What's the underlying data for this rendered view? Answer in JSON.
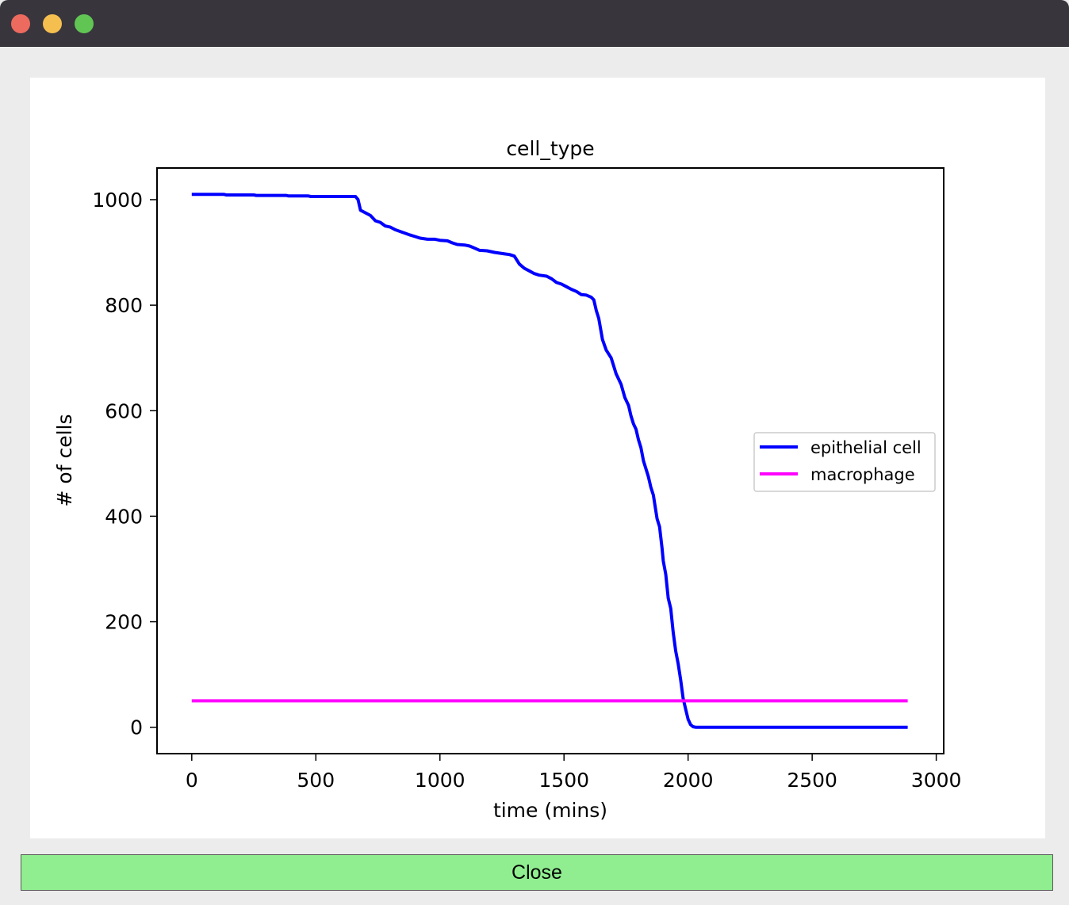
{
  "window": {
    "controls": [
      "close",
      "minimize",
      "zoom"
    ]
  },
  "close_button": {
    "label": "Close",
    "color": "#90ee90"
  },
  "chart_data": {
    "type": "line",
    "title": "cell_type",
    "xlabel": "time (mins)",
    "ylabel": "# of cells",
    "xlim": [
      -140,
      3030
    ],
    "ylim": [
      -50,
      1060
    ],
    "xticks": [
      0,
      500,
      1000,
      1500,
      2000,
      2500,
      3000
    ],
    "yticks": [
      0,
      200,
      400,
      600,
      800,
      1000
    ],
    "grid": false,
    "legend": "center-right",
    "series": [
      {
        "name": "epithelial cell",
        "color": "#0000ff",
        "points": [
          [
            0,
            1010
          ],
          [
            130,
            1010
          ],
          [
            140,
            1009
          ],
          [
            250,
            1009
          ],
          [
            260,
            1008
          ],
          [
            380,
            1008
          ],
          [
            390,
            1007
          ],
          [
            470,
            1007
          ],
          [
            480,
            1006
          ],
          [
            660,
            1006
          ],
          [
            670,
            1000
          ],
          [
            680,
            980
          ],
          [
            700,
            975
          ],
          [
            720,
            970
          ],
          [
            740,
            960
          ],
          [
            760,
            957
          ],
          [
            780,
            950
          ],
          [
            800,
            948
          ],
          [
            820,
            943
          ],
          [
            850,
            938
          ],
          [
            880,
            933
          ],
          [
            900,
            930
          ],
          [
            920,
            927
          ],
          [
            950,
            925
          ],
          [
            980,
            925
          ],
          [
            1000,
            923
          ],
          [
            1030,
            922
          ],
          [
            1050,
            918
          ],
          [
            1070,
            915
          ],
          [
            1100,
            914
          ],
          [
            1120,
            912
          ],
          [
            1140,
            908
          ],
          [
            1160,
            904
          ],
          [
            1190,
            903
          ],
          [
            1220,
            900
          ],
          [
            1250,
            898
          ],
          [
            1280,
            896
          ],
          [
            1300,
            893
          ],
          [
            1320,
            878
          ],
          [
            1340,
            870
          ],
          [
            1360,
            865
          ],
          [
            1380,
            860
          ],
          [
            1400,
            857
          ],
          [
            1430,
            855
          ],
          [
            1450,
            850
          ],
          [
            1470,
            843
          ],
          [
            1490,
            840
          ],
          [
            1510,
            835
          ],
          [
            1530,
            830
          ],
          [
            1550,
            826
          ],
          [
            1570,
            820
          ],
          [
            1590,
            819
          ],
          [
            1610,
            815
          ],
          [
            1620,
            810
          ],
          [
            1630,
            790
          ],
          [
            1640,
            775
          ],
          [
            1655,
            735
          ],
          [
            1670,
            715
          ],
          [
            1690,
            700
          ],
          [
            1710,
            670
          ],
          [
            1730,
            650
          ],
          [
            1745,
            625
          ],
          [
            1760,
            610
          ],
          [
            1770,
            590
          ],
          [
            1780,
            575
          ],
          [
            1790,
            565
          ],
          [
            1800,
            545
          ],
          [
            1810,
            530
          ],
          [
            1820,
            505
          ],
          [
            1830,
            490
          ],
          [
            1840,
            475
          ],
          [
            1850,
            455
          ],
          [
            1860,
            440
          ],
          [
            1870,
            410
          ],
          [
            1875,
            395
          ],
          [
            1885,
            380
          ],
          [
            1895,
            340
          ],
          [
            1900,
            315
          ],
          [
            1910,
            290
          ],
          [
            1920,
            245
          ],
          [
            1930,
            225
          ],
          [
            1940,
            180
          ],
          [
            1950,
            145
          ],
          [
            1960,
            120
          ],
          [
            1970,
            90
          ],
          [
            1980,
            55
          ],
          [
            1990,
            35
          ],
          [
            2000,
            15
          ],
          [
            2010,
            5
          ],
          [
            2020,
            1
          ],
          [
            2030,
            0
          ],
          [
            2885,
            0
          ]
        ]
      },
      {
        "name": "macrophage",
        "color": "#ff00ff",
        "points": [
          [
            0,
            50
          ],
          [
            2885,
            50
          ]
        ]
      }
    ]
  }
}
